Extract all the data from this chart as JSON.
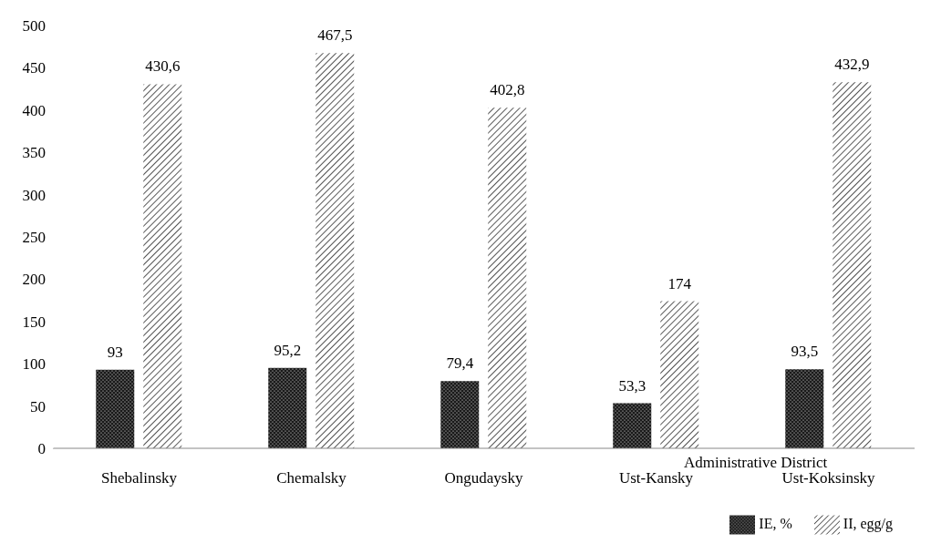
{
  "chart_data": {
    "type": "bar",
    "xlabel": "Administrative District",
    "categories": [
      "Shebalinsky",
      "Chemalsky",
      "Ongudaysky",
      "Ust-Kansky",
      "Ust-Koksinsky"
    ],
    "series": [
      {
        "name": "IE, %",
        "color": "#1a1a1a",
        "values": [
          93,
          95.2,
          79.4,
          53.3,
          93.5
        ],
        "value_labels": [
          "93",
          "95,2",
          "79,4",
          "53,3",
          "93,5"
        ]
      },
      {
        "name": "II, egg/g",
        "color": "#555555",
        "values": [
          430.6,
          467.5,
          402.8,
          174,
          432.9
        ],
        "value_labels": [
          "430,6",
          "467,5",
          "402,8",
          "174",
          "432,9"
        ]
      }
    ],
    "ylim": [
      0,
      500
    ],
    "yticks": [
      0,
      50,
      100,
      150,
      200,
      250,
      300,
      350,
      400,
      450,
      500
    ],
    "grid": false,
    "legend": "bottom right"
  }
}
